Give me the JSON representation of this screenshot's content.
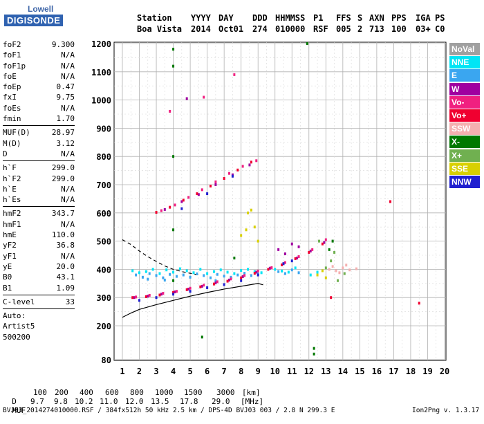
{
  "logo": {
    "line1": "Lowell",
    "line2": "DIGISONDE"
  },
  "header": {
    "labels": [
      "Station",
      "YYYY",
      "DAY",
      "DDD",
      "HHMMSS",
      "P1",
      "FFS",
      "S",
      "AXN",
      "PPS",
      "IGA",
      "PS"
    ],
    "values": [
      "Boa Vista",
      "2014",
      "Oct01",
      "274",
      "010000",
      "RSF",
      "005",
      "2",
      "713",
      "100",
      "03+",
      "C0"
    ]
  },
  "params": [
    {
      "key": "foF2",
      "val": "9.300"
    },
    {
      "key": "foF1",
      "val": "N/A"
    },
    {
      "key": "foF1p",
      "val": "N/A"
    },
    {
      "key": "foE",
      "val": "N/A"
    },
    {
      "key": "foEp",
      "val": "0.47"
    },
    {
      "key": "fxI",
      "val": "9.75"
    },
    {
      "key": "foEs",
      "val": "N/A"
    },
    {
      "key": "fmin",
      "val": "1.70"
    },
    {
      "sep": true
    },
    {
      "key": "MUF(D)",
      "val": "28.97"
    },
    {
      "key": "M(D)",
      "val": "3.12"
    },
    {
      "key": "D",
      "val": "N/A"
    },
    {
      "sep": true
    },
    {
      "key": "h`F",
      "val": "299.0"
    },
    {
      "key": "h`F2",
      "val": "299.0"
    },
    {
      "key": "h`E",
      "val": "N/A"
    },
    {
      "key": "h`Es",
      "val": "N/A"
    },
    {
      "sep": true
    },
    {
      "key": "hmF2",
      "val": "343.7"
    },
    {
      "key": "hmF1",
      "val": "N/A"
    },
    {
      "key": "hmE",
      "val": "110.0"
    },
    {
      "key": "yF2",
      "val": "36.8"
    },
    {
      "key": "yF1",
      "val": "N/A"
    },
    {
      "key": "yE",
      "val": "20.0"
    },
    {
      "key": "B0",
      "val": "43.1"
    },
    {
      "key": "B1",
      "val": "1.09"
    },
    {
      "sep": true
    },
    {
      "key": "C-level",
      "val": "33"
    },
    {
      "sep": true
    }
  ],
  "autoscale": {
    "line1": "Auto:",
    "line2": "Artist5",
    "line3": "500200"
  },
  "legend": [
    {
      "label": "NoVal",
      "color": "#a0a0a0"
    },
    {
      "label": "NNE",
      "color": "#00e5f5"
    },
    {
      "label": "E",
      "color": "#3aa6f0"
    },
    {
      "label": "W",
      "color": "#a000a0"
    },
    {
      "label": "Vo-",
      "color": "#f02080"
    },
    {
      "label": "Vo+",
      "color": "#f00030"
    },
    {
      "label": "SSW",
      "color": "#f5b0b0"
    },
    {
      "label": "X-",
      "color": "#007800"
    },
    {
      "label": "X+",
      "color": "#70b050"
    },
    {
      "label": "SSE",
      "color": "#d8d000"
    },
    {
      "label": "NNW",
      "color": "#2020d0"
    }
  ],
  "footer": {
    "d_label": "D",
    "d_values": [
      "100",
      "200",
      "400",
      "600",
      "800",
      "1000",
      "1500",
      "3000",
      "[km]"
    ],
    "muf_label": "MUF",
    "muf_values": [
      "9.7",
      "9.8",
      "10.2",
      "11.0",
      "12.0",
      "13.5",
      "17.8",
      "29.0",
      "[MHz]"
    ],
    "file_info": "BVJ03_2014274010000.RSF / 384fx512h 50 kHz 2.5 km / DPS-4D BVJ03 003 / 2.8 N 299.3 E",
    "version": "Ion2Png v. 1.3.17"
  },
  "chart_data": {
    "type": "scatter",
    "title": "",
    "xlabel": "",
    "ylabel": "",
    "xlim": [
      1,
      20
    ],
    "ylim": [
      80,
      1200
    ],
    "xticks": [
      1,
      2,
      3,
      4,
      5,
      6,
      7,
      8,
      9,
      10,
      11,
      12,
      13,
      14,
      15,
      16,
      17,
      18,
      19,
      20
    ],
    "yticks": [
      80,
      200,
      300,
      400,
      500,
      600,
      700,
      800,
      900,
      1000,
      1100,
      1200
    ],
    "grid": true,
    "series": [
      {
        "name": "NoVal",
        "color": "#a0a0a0",
        "x": [],
        "y": []
      },
      {
        "name": "NNE",
        "color": "#00e5f5",
        "x": [
          1.6,
          2,
          2.4,
          2.8,
          3.2,
          3.6,
          4,
          4.4,
          4.8,
          5.2,
          5.6,
          6,
          6.4,
          6.8,
          7.2,
          7.6,
          8,
          8.4,
          8.8,
          9.2,
          10,
          10.4,
          10.8,
          11.2,
          12.1,
          12.5
        ],
        "y": [
          395,
          388,
          392,
          400,
          385,
          398,
          390,
          402,
          395,
          388,
          400,
          385,
          392,
          398,
          390,
          385,
          396,
          400,
          392,
          388,
          400,
          394,
          390,
          405,
          380,
          390
        ]
      },
      {
        "name": "E",
        "color": "#3aa6f0",
        "x": [
          1.8,
          2.2,
          2.6,
          3,
          3.4,
          3.8,
          4.2,
          4.6,
          5,
          5.4,
          5.8,
          6.2,
          6.6,
          7,
          7.4,
          7.8,
          8.2,
          8.6,
          9,
          10.2,
          10.6,
          11,
          11.4,
          2.5,
          3.5,
          6.5
        ],
        "y": [
          380,
          372,
          385,
          378,
          370,
          382,
          375,
          380,
          372,
          384,
          378,
          370,
          382,
          376,
          372,
          380,
          386,
          378,
          384,
          392,
          385,
          398,
          388,
          365,
          362,
          360
        ]
      },
      {
        "name": "W",
        "color": "#a000a0",
        "x": [
          1.7,
          2.5,
          3.3,
          4.1,
          4.9,
          5.7,
          6.5,
          7.3,
          8.1,
          8.9,
          9.7,
          10.5,
          11.3,
          12.1,
          12.9,
          10.2,
          10.6,
          11,
          11.4,
          3.5,
          4.5,
          5.5,
          6.5,
          7.5,
          8.5,
          4.8
        ],
        "y": [
          300,
          305,
          312,
          320,
          330,
          340,
          352,
          362,
          374,
          390,
          404,
          420,
          440,
          465,
          495,
          470,
          455,
          490,
          480,
          612,
          640,
          665,
          700,
          735,
          770,
          1005
        ]
      },
      {
        "name": "Vo-",
        "color": "#f02080",
        "x": [
          1.8,
          2.6,
          3.4,
          4.2,
          5,
          5.8,
          6.6,
          7.4,
          8.2,
          9,
          9.8,
          10.6,
          11.4,
          12.2,
          13,
          3.3,
          4.1,
          4.9,
          5.7,
          6.5,
          7.3,
          8.1,
          8.9,
          3.8,
          5.8,
          7.6
        ],
        "y": [
          302,
          308,
          315,
          322,
          333,
          344,
          356,
          366,
          378,
          394,
          406,
          424,
          445,
          470,
          505,
          608,
          628,
          655,
          682,
          710,
          740,
          765,
          785,
          960,
          1010,
          1090
        ]
      },
      {
        "name": "Vo+",
        "color": "#f00030",
        "x": [
          1.6,
          2.4,
          3.2,
          4,
          4.8,
          5.6,
          6.4,
          7.2,
          8,
          8.8,
          9.6,
          10.4,
          11.2,
          12,
          12.8,
          3,
          3.8,
          4.6,
          5.4,
          6.2,
          7,
          7.8,
          8.6,
          13.3,
          16.8,
          18.5
        ],
        "y": [
          300,
          303,
          309,
          318,
          328,
          338,
          348,
          358,
          370,
          386,
          400,
          416,
          438,
          460,
          490,
          602,
          620,
          645,
          668,
          695,
          722,
          752,
          780,
          300,
          640,
          280
        ]
      },
      {
        "name": "SSW",
        "color": "#f5b0b0",
        "x": [
          13.2,
          13.6,
          14,
          14.4,
          14.8,
          13.4,
          13.8,
          14.2
        ],
        "y": [
          400,
          395,
          405,
          398,
          402,
          410,
          388,
          415
        ]
      },
      {
        "name": "X-",
        "color": "#007800",
        "x": [
          4,
          4,
          4,
          4,
          4,
          12.3,
          12.3,
          5.7,
          13.2,
          13.4,
          7.6,
          11.9
        ],
        "y": [
          1180,
          1120,
          800,
          540,
          360,
          120,
          100,
          160,
          470,
          500,
          440,
          1200
        ]
      },
      {
        "name": "X+",
        "color": "#70b050",
        "x": [
          13,
          13.3,
          13.5,
          12.6,
          14.1,
          13.7
        ],
        "y": [
          405,
          430,
          460,
          500,
          385,
          360
        ]
      },
      {
        "name": "SSE",
        "color": "#d8d000",
        "x": [
          8,
          8.3,
          8.6,
          9,
          8.4,
          8.8,
          12.5,
          13,
          12.8
        ],
        "y": [
          520,
          540,
          610,
          500,
          600,
          550,
          380,
          370,
          395
        ]
      },
      {
        "name": "NNW",
        "color": "#2020d0",
        "x": [
          2,
          3,
          4,
          5,
          6,
          7,
          8,
          9,
          10.5,
          11,
          4.5,
          6,
          7.5
        ],
        "y": [
          290,
          300,
          312,
          322,
          335,
          346,
          360,
          380,
          420,
          430,
          615,
          668,
          730
        ]
      }
    ],
    "lines": [
      {
        "style": "solid",
        "color": "#000000",
        "x": [
          1,
          1.5,
          2,
          3,
          4,
          5,
          6,
          7,
          8,
          9,
          9.3
        ],
        "y": [
          230,
          245,
          258,
          275,
          290,
          305,
          318,
          330,
          340,
          350,
          345
        ]
      },
      {
        "style": "dashed",
        "color": "#000000",
        "x": [
          1,
          1.5,
          2,
          2.5,
          3,
          3.5,
          4,
          4.5,
          5,
          5.5
        ],
        "y": [
          505,
          488,
          465,
          445,
          428,
          412,
          400,
          392,
          386,
          380
        ]
      }
    ]
  }
}
